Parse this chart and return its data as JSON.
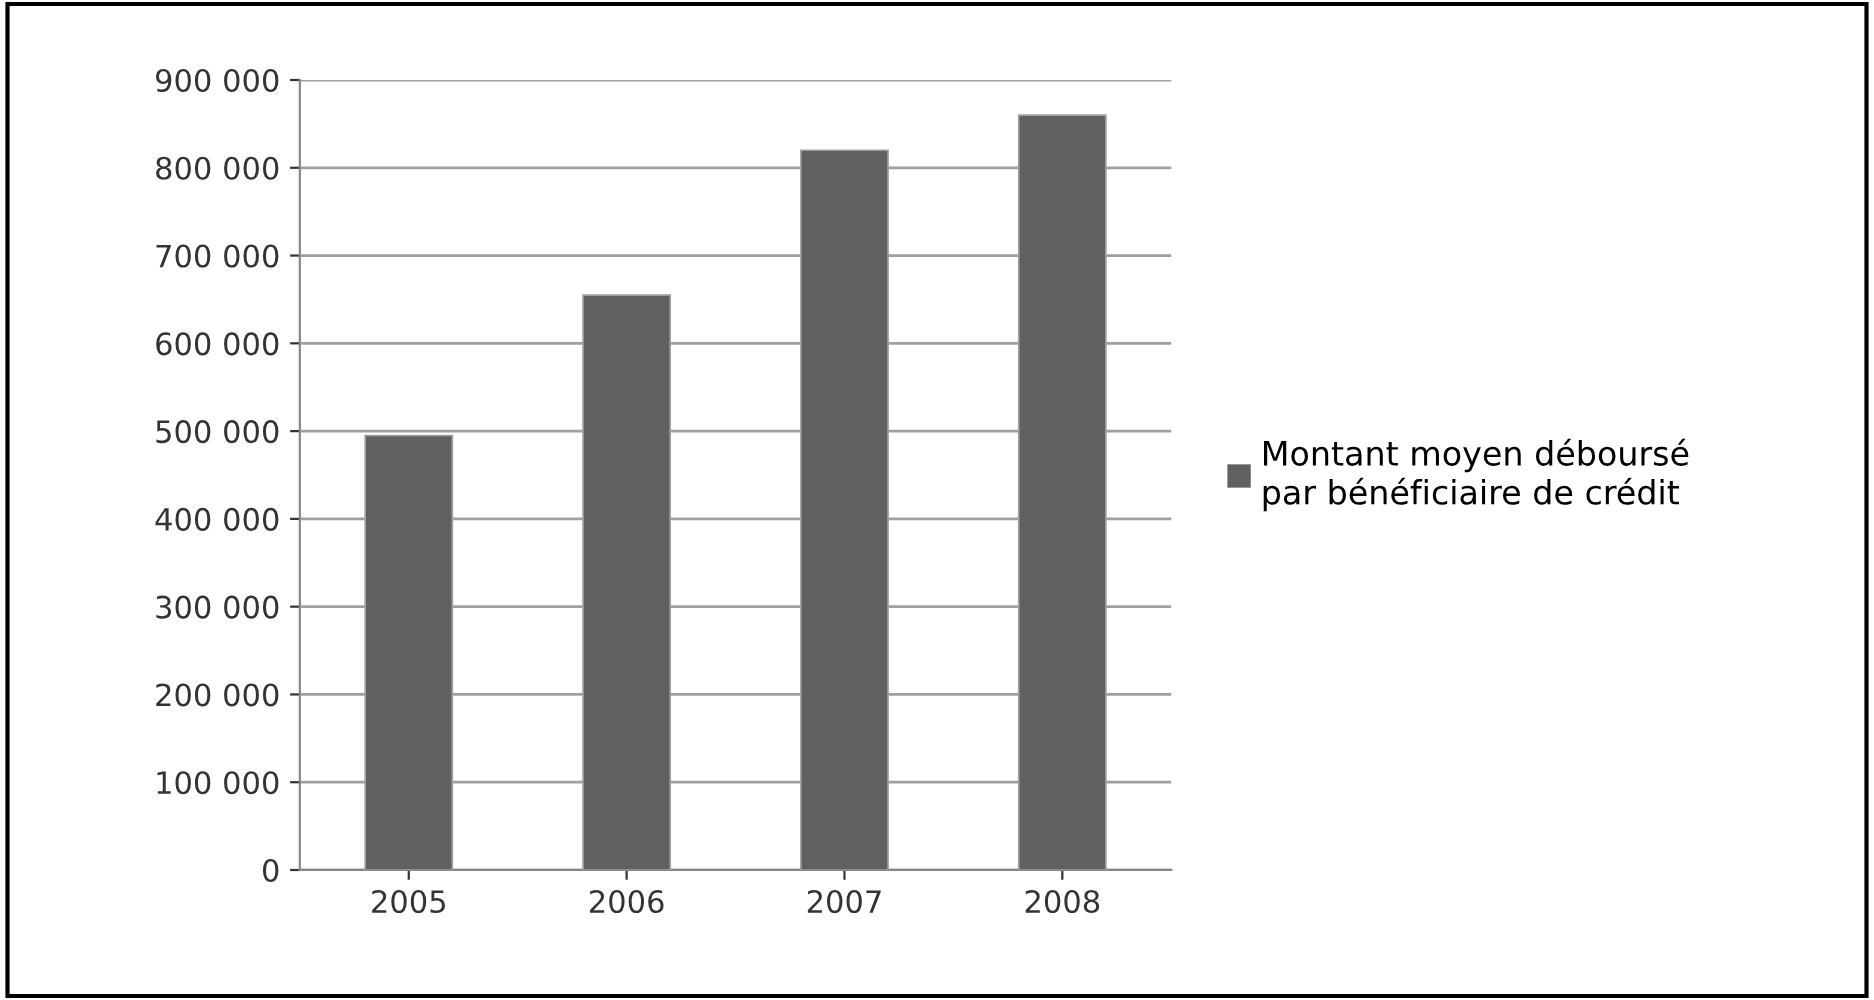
{
  "chart_data": {
    "type": "bar",
    "categories": [
      "2005",
      "2006",
      "2007",
      "2008"
    ],
    "series": [
      {
        "name": "Montant moyen déboursé par bénéficiaire de crédit",
        "color": "#606060",
        "values": [
          495000,
          655000,
          820000,
          860000
        ]
      }
    ],
    "ylim": [
      0,
      900000
    ],
    "yticks": [
      0,
      {
        "value": 100000,
        "label": "100 000"
      },
      {
        "value": 200000,
        "label": "200 000"
      },
      {
        "value": 300000,
        "label": "300 000"
      },
      {
        "value": 400000,
        "label": "400 000"
      },
      {
        "value": 500000,
        "label": "500 000"
      },
      {
        "value": 600000,
        "label": "600 000"
      },
      {
        "value": 700000,
        "label": "700 000"
      },
      {
        "value": 800000,
        "label": "800 000"
      },
      {
        "value": 900000,
        "label": "900 000"
      }
    ],
    "grid": "y",
    "legend": "right"
  }
}
